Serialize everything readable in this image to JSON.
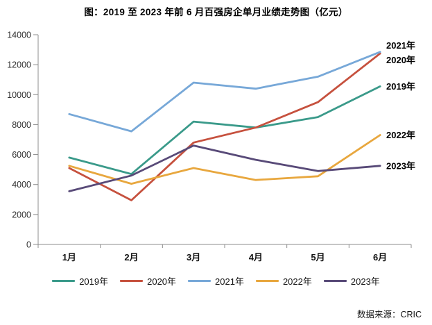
{
  "title": "图：2019 至 2023 年前 6 月百强房企单月业绩走势图（亿元）",
  "source": "数据来源：CRIC",
  "chart_data": {
    "type": "line",
    "title": "图：2019 至 2023 年前 6 月百强房企单月业绩走势图（亿元）",
    "unit": "亿元",
    "categories": [
      "1月",
      "2月",
      "3月",
      "4月",
      "5月",
      "6月"
    ],
    "series": [
      {
        "name": "2019年",
        "color": "#3a9a8a",
        "values": [
          5800,
          4700,
          8200,
          7800,
          8500,
          10550
        ]
      },
      {
        "name": "2020年",
        "color": "#c6513e",
        "values": [
          5100,
          2950,
          6800,
          7800,
          9500,
          12750
        ]
      },
      {
        "name": "2021年",
        "color": "#77a8d8",
        "values": [
          8700,
          7550,
          10800,
          10400,
          11200,
          12850
        ]
      },
      {
        "name": "2022年",
        "color": "#e8a73e",
        "values": [
          5250,
          4050,
          5100,
          4300,
          4550,
          7300
        ]
      },
      {
        "name": "2023年",
        "color": "#584a78",
        "values": [
          3550,
          4600,
          6600,
          5650,
          4900,
          5250
        ]
      }
    ],
    "ylim": [
      0,
      14000
    ],
    "ytick_step": 2000,
    "grid": false,
    "legend_position": "bottom",
    "end_labels": true,
    "axis_color": "#8c8c8c"
  }
}
